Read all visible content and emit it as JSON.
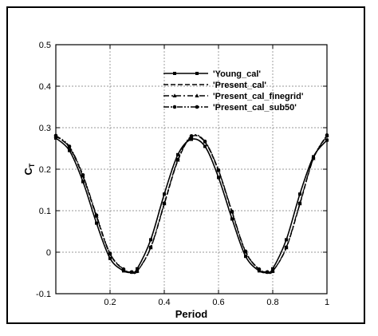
{
  "chart_data": {
    "type": "line",
    "xlabel": "Period",
    "ylabel": "C",
    "ylabel_sub": "T",
    "xlim": [
      0,
      1
    ],
    "ylim": [
      -0.1,
      0.5
    ],
    "xticks": [
      0.2,
      0.4,
      0.6,
      0.8,
      1
    ],
    "xtick_labels": [
      "0.2",
      "0.4",
      "0.6",
      "0.8",
      "1"
    ],
    "yticks": [
      -0.1,
      0,
      0.1,
      0.2,
      0.3,
      0.4,
      0.5
    ],
    "ytick_labels": [
      "-0.1",
      "0",
      "0.1",
      "0.2",
      "0.3",
      "0.4",
      "0.5"
    ],
    "grid": true,
    "legend_position": "top-right",
    "x": [
      0.0,
      0.05,
      0.1,
      0.15,
      0.2,
      0.25,
      0.28,
      0.3,
      0.35,
      0.4,
      0.45,
      0.5,
      0.55,
      0.6,
      0.65,
      0.7,
      0.75,
      0.78,
      0.8,
      0.85,
      0.9,
      0.95,
      1.0
    ],
    "series": [
      {
        "name": "'Young_cal'",
        "style": "solid",
        "marker": "square",
        "values": [
          0.275,
          0.245,
          0.17,
          0.07,
          -0.015,
          -0.045,
          -0.048,
          -0.04,
          0.03,
          0.14,
          0.235,
          0.272,
          0.255,
          0.18,
          0.08,
          -0.01,
          -0.045,
          -0.048,
          -0.04,
          0.03,
          0.14,
          0.23,
          0.27
        ]
      },
      {
        "name": "'Present_cal'",
        "style": "dash",
        "marker": "none",
        "values": [
          0.28,
          0.252,
          0.182,
          0.085,
          -0.005,
          -0.042,
          -0.048,
          -0.046,
          0.01,
          0.115,
          0.22,
          0.278,
          0.265,
          0.195,
          0.095,
          0.0,
          -0.042,
          -0.048,
          -0.046,
          0.01,
          0.115,
          0.225,
          0.28
        ]
      },
      {
        "name": "'Present_cal_finegrid'",
        "style": "dashdot",
        "marker": "triangle",
        "values": [
          0.28,
          0.253,
          0.184,
          0.087,
          -0.004,
          -0.042,
          -0.048,
          -0.046,
          0.011,
          0.117,
          0.222,
          0.279,
          0.266,
          0.197,
          0.097,
          0.001,
          -0.042,
          -0.048,
          -0.046,
          0.011,
          0.117,
          0.226,
          0.281
        ]
      },
      {
        "name": "'Present_cal_sub50'",
        "style": "dashdotdot",
        "marker": "circle",
        "values": [
          0.281,
          0.255,
          0.186,
          0.089,
          -0.003,
          -0.041,
          -0.048,
          -0.046,
          0.012,
          0.118,
          0.223,
          0.28,
          0.267,
          0.198,
          0.098,
          0.002,
          -0.041,
          -0.048,
          -0.046,
          0.012,
          0.118,
          0.227,
          0.282
        ]
      }
    ]
  }
}
